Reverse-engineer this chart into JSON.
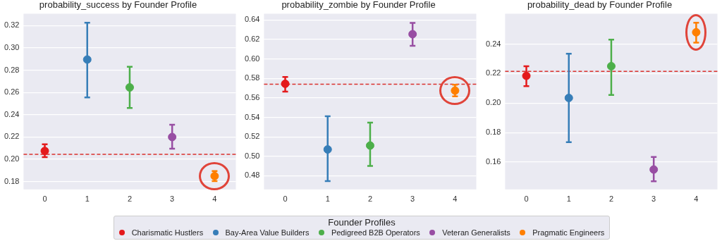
{
  "chart_data": [
    {
      "type": "scatter",
      "title": "probability_success by Founder Profile",
      "categories": [
        "0",
        "1",
        "2",
        "3",
        "4"
      ],
      "ylim": [
        0.173,
        0.3305
      ],
      "yticks": [
        0.18,
        {
          "value": 0.2,
          "label": "0.20"
        },
        0.22,
        0.24,
        0.26,
        0.28,
        {
          "value": 0.3,
          "label": "0.30"
        },
        0.32
      ],
      "grid": "y",
      "marker": "circle",
      "legend": "bottom",
      "legend_title": "Founder Profiles",
      "series": [
        {
          "name": "Charismatic Hustlers",
          "color": "#e41a1c",
          "values": [
            0.2075,
            null,
            null,
            null,
            null
          ],
          "errors": [
            [
              0.202,
              0.2135
            ],
            null,
            null,
            null,
            null
          ]
        },
        {
          "name": "Bay-Area Value Builders",
          "color": "#377eb8",
          "values": [
            null,
            0.2895,
            null,
            null,
            null
          ],
          "errors": [
            null,
            [
              0.2555,
              0.3225
            ],
            null,
            null,
            null
          ]
        },
        {
          "name": "Pedigreed B2B Operators",
          "color": "#4daf4a",
          "values": [
            null,
            null,
            0.2645,
            null,
            null
          ],
          "errors": [
            null,
            null,
            [
              0.246,
              0.283
            ],
            null,
            null
          ]
        },
        {
          "name": "Veteran Generalists",
          "color": "#984ea3",
          "values": [
            null,
            null,
            null,
            0.22,
            null
          ],
          "errors": [
            null,
            null,
            null,
            [
              0.2095,
              0.231
            ],
            null
          ]
        },
        {
          "name": "Pragmatic Engineers",
          "color": "#ff7f00",
          "values": [
            null,
            null,
            null,
            null,
            0.185
          ],
          "errors": [
            null,
            null,
            null,
            null,
            [
              0.1805,
              0.1895
            ]
          ]
        }
      ],
      "ref_lines": [
        {
          "axis": "y",
          "value": 0.2045,
          "color": "#d9302c",
          "line_style": "dashed"
        }
      ]
    },
    {
      "type": "scatter",
      "title": "probability_zombie by Founder Profile",
      "categories": [
        "0",
        "1",
        "2",
        "3",
        "4"
      ],
      "ylim": [
        0.4659,
        0.6464
      ],
      "yticks": [
        0.48,
        {
          "value": 0.5,
          "label": "0.50"
        },
        0.52,
        0.54,
        0.56,
        0.58,
        {
          "value": 0.6,
          "label": "0.60"
        },
        0.62,
        0.64
      ],
      "grid": "y",
      "marker": "circle",
      "series": [
        {
          "color": "#e41a1c",
          "values": [
            0.5745,
            null,
            null,
            null,
            null
          ],
          "errors": [
            [
              0.5665,
              0.5815
            ],
            null,
            null,
            null,
            null
          ]
        },
        {
          "color": "#377eb8",
          "values": [
            null,
            0.507,
            null,
            null,
            null
          ],
          "errors": [
            null,
            [
              0.4745,
              0.541
            ],
            null,
            null,
            null
          ]
        },
        {
          "color": "#4daf4a",
          "values": [
            null,
            null,
            0.511,
            null,
            null
          ],
          "errors": [
            null,
            null,
            [
              0.49,
              0.5345
            ],
            null,
            null
          ]
        },
        {
          "color": "#984ea3",
          "values": [
            null,
            null,
            null,
            0.6255,
            null
          ],
          "errors": [
            null,
            null,
            null,
            [
              0.6135,
              0.637
            ],
            null
          ]
        },
        {
          "color": "#ff7f00",
          "values": [
            null,
            null,
            null,
            null,
            0.5675
          ],
          "errors": [
            null,
            null,
            null,
            null,
            [
              0.5615,
              0.5735
            ]
          ]
        }
      ],
      "ref_lines": [
        {
          "axis": "y",
          "value": 0.574,
          "color": "#d9302c",
          "line_style": "dashed"
        }
      ]
    },
    {
      "type": "scatter",
      "title": "probability_dead by Founder Profile",
      "categories": [
        "0",
        "1",
        "2",
        "3",
        "4"
      ],
      "ylim": [
        0.1415,
        0.2605
      ],
      "yticks": [
        0.16,
        0.18,
        {
          "value": 0.2,
          "label": "0.20"
        },
        0.22,
        0.24
      ],
      "grid": "y",
      "marker": "circle",
      "series": [
        {
          "color": "#e41a1c",
          "values": [
            0.2185,
            null,
            null,
            null,
            null
          ],
          "errors": [
            [
              0.2115,
              0.225
            ],
            null,
            null,
            null,
            null
          ]
        },
        {
          "color": "#377eb8",
          "values": [
            null,
            0.2035,
            null,
            null,
            null
          ],
          "errors": [
            null,
            [
              0.1735,
              0.2335
            ],
            null,
            null,
            null
          ]
        },
        {
          "color": "#4daf4a",
          "values": [
            null,
            null,
            0.225,
            null,
            null
          ],
          "errors": [
            null,
            null,
            [
              0.2055,
              0.243
            ],
            null,
            null
          ]
        },
        {
          "color": "#984ea3",
          "values": [
            null,
            null,
            null,
            0.155,
            null
          ],
          "errors": [
            null,
            null,
            null,
            [
              0.147,
              0.1635
            ],
            null
          ]
        },
        {
          "color": "#ff7f00",
          "values": [
            null,
            null,
            null,
            null,
            0.248
          ],
          "errors": [
            null,
            null,
            null,
            null,
            [
              0.241,
              0.2545
            ]
          ]
        }
      ],
      "ref_lines": [
        {
          "axis": "y",
          "value": 0.2215,
          "color": "#d9302c",
          "line_style": "dashed"
        }
      ]
    }
  ]
}
